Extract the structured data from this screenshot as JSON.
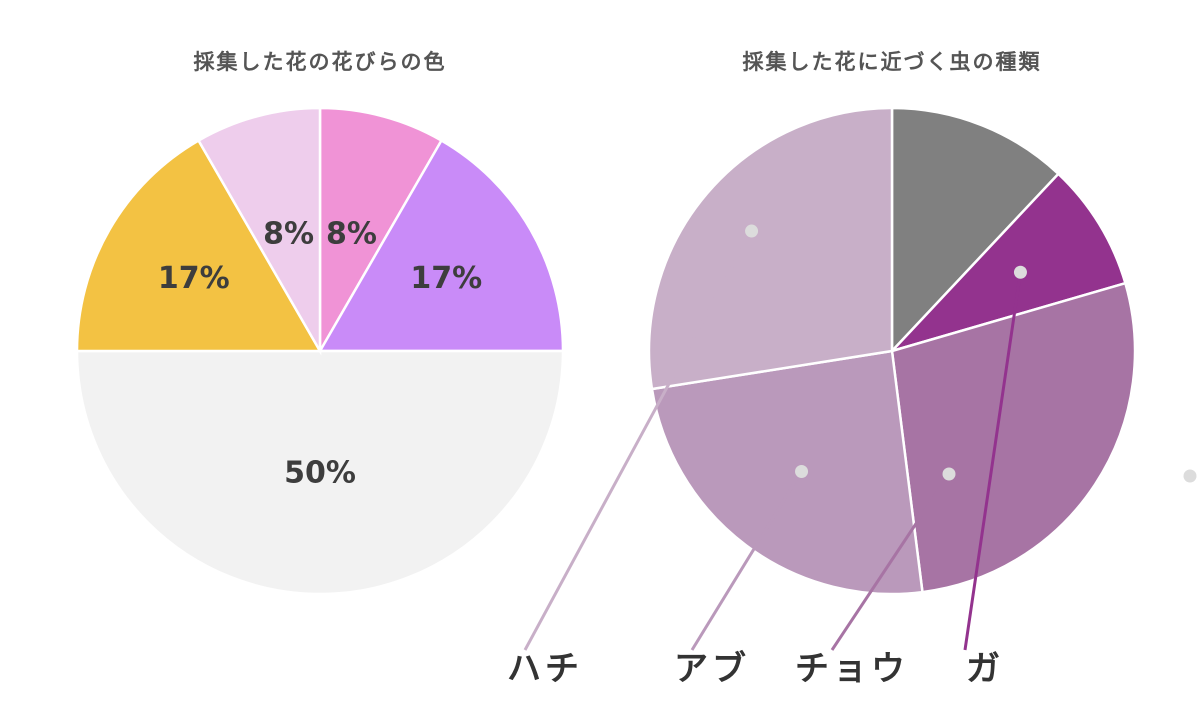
{
  "chart_data": [
    {
      "type": "pie",
      "title": "採集した花の花びらの色",
      "slices": [
        {
          "label": "8%",
          "value": 8.33,
          "color": "#f093d6"
        },
        {
          "label": "17%",
          "value": 16.67,
          "color": "#c98bf8"
        },
        {
          "label": "50%",
          "value": 50,
          "color": "#f2f2f2"
        },
        {
          "label": "17%",
          "value": 16.67,
          "color": "#f3c243"
        },
        {
          "label": "8%",
          "value": 8.33,
          "color": "#eecdec"
        }
      ],
      "start": "12 o'clock, clockwise"
    },
    {
      "type": "pie",
      "title": "採集した花に近づく虫の種類",
      "slices": [
        {
          "label": "",
          "value": 12,
          "color": "#808080"
        },
        {
          "label": "ガ",
          "value": 8.5,
          "color": "#93338e"
        },
        {
          "label": "チョウ",
          "value": 27.5,
          "color": "#a774a4"
        },
        {
          "label": "アブ",
          "value": 24.5,
          "color": "#ba99bb"
        },
        {
          "label": "ハチ",
          "value": 27.5,
          "color": "#c8afc8"
        }
      ],
      "start": "12 o'clock, clockwise",
      "labels": "callouts below chart"
    }
  ]
}
